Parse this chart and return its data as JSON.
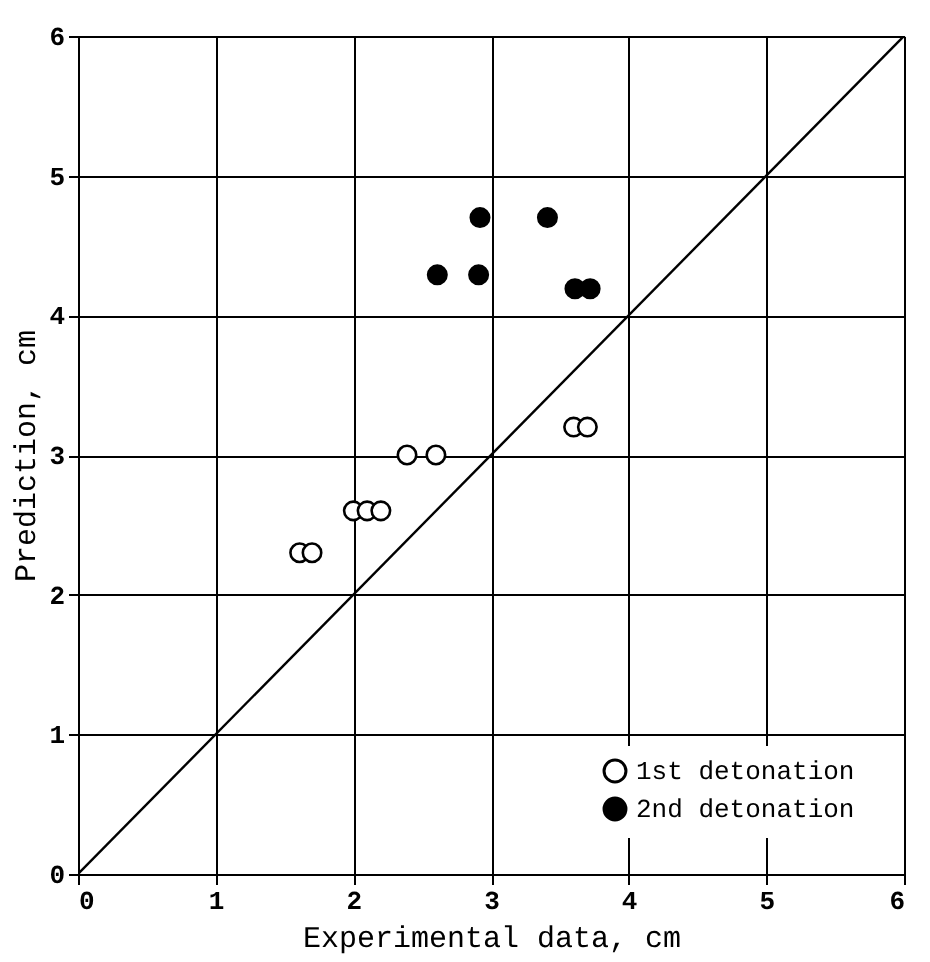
{
  "chart_data": {
    "type": "scatter",
    "xlabel": "Experimental data, cm",
    "ylabel": "Prediction, cm",
    "xlim": [
      0,
      6
    ],
    "ylim": [
      0,
      6
    ],
    "xticks": [
      0,
      1,
      2,
      3,
      4,
      5,
      6
    ],
    "yticks": [
      0,
      1,
      2,
      3,
      4,
      5,
      6
    ],
    "grid": true,
    "legend": "bottom right",
    "series": [
      {
        "name": "1st detonation",
        "color": "#ffffff",
        "marker": "circle",
        "x": [
          1.61,
          1.7,
          2.0,
          2.1,
          2.2,
          2.39,
          2.6,
          3.6,
          3.7
        ],
        "values": [
          2.3,
          2.3,
          2.6,
          2.6,
          2.6,
          3.0,
          3.0,
          3.2,
          3.2
        ]
      },
      {
        "name": "2nd detonation",
        "color": "#000000",
        "marker": "circle",
        "x": [
          2.61,
          2.91,
          2.92,
          3.41,
          3.61,
          3.72
        ],
        "values": [
          4.29,
          4.29,
          4.7,
          4.7,
          4.19,
          4.19
        ]
      },
      {
        "type": "line",
        "color": "#000000",
        "x": [
          0,
          6
        ],
        "values": [
          0,
          6
        ]
      }
    ]
  }
}
